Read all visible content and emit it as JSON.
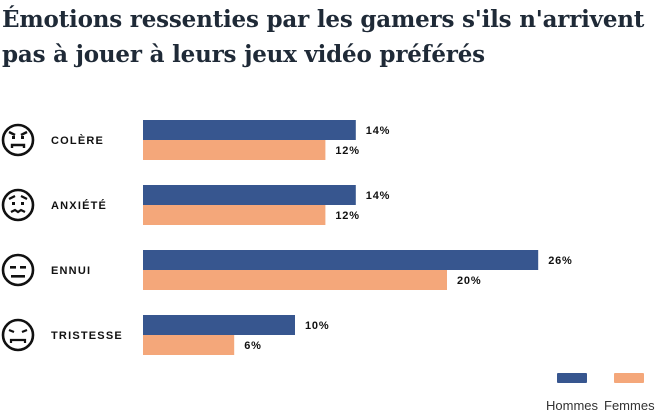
{
  "chart_data": {
    "type": "bar",
    "orientation": "horizontal",
    "title": "Émotions ressenties par les gamers s'ils n'arrivent pas à jouer à leurs jeux vidéo préférés",
    "categories": [
      "COLÈRE",
      "ANXIÉTÉ",
      "ENNUI",
      "TRISTESSE"
    ],
    "category_icons": [
      "angry-face-icon",
      "anxious-face-icon",
      "bored-face-icon",
      "sad-face-icon"
    ],
    "series": [
      {
        "name": "Hommes",
        "values": [
          14,
          14,
          26,
          10
        ],
        "labels": [
          "14%",
          "14%",
          "26%",
          "10%"
        ],
        "color": "#37568f"
      },
      {
        "name": "Femmes",
        "values": [
          12,
          12,
          20,
          6
        ],
        "labels": [
          "12%",
          "12%",
          "20%",
          "6%"
        ],
        "color": "#f4a77a"
      }
    ],
    "value_unit": "%",
    "legend_position": "bottom-right",
    "grid": false
  }
}
